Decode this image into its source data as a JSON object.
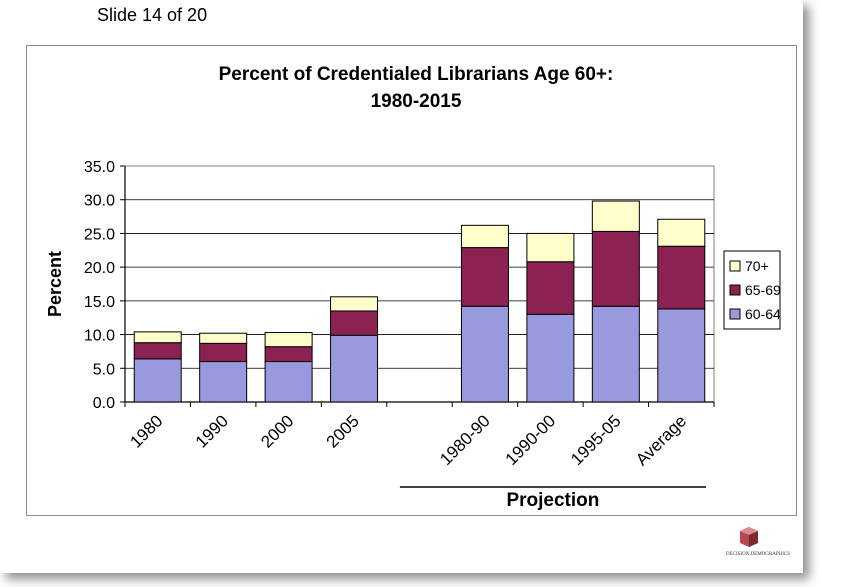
{
  "slide": {
    "label": "Slide 14 of 20"
  },
  "logo": {
    "text": "DECISION DEMOGRAPHICS"
  },
  "chart_data": {
    "type": "bar",
    "stacked": true,
    "title": "Percent of Credentialed Librarians Age 60+:",
    "subtitle": "1980-2015",
    "ylabel": "Percent",
    "xlabel": "",
    "ylim": [
      0,
      35
    ],
    "yticks": [
      "0.0",
      "5.0",
      "10.0",
      "15.0",
      "20.0",
      "25.0",
      "30.0",
      "35.0"
    ],
    "categories": [
      "1980",
      "1990",
      "2000",
      "2005",
      "1980-90",
      "1990-00",
      "1995-05",
      "Average"
    ],
    "group_label": "Projection",
    "series": [
      {
        "name": "60-64",
        "color": "#9999dd",
        "values": [
          6.4,
          6.0,
          6.0,
          9.9,
          14.2,
          13.0,
          14.2,
          13.8
        ]
      },
      {
        "name": "65-69",
        "color": "#8b2252",
        "values": [
          2.4,
          2.7,
          2.2,
          3.6,
          8.7,
          7.8,
          11.1,
          9.3
        ]
      },
      {
        "name": "70+",
        "color": "#ffffcc",
        "values": [
          1.6,
          1.5,
          2.1,
          2.1,
          3.3,
          4.2,
          4.5,
          4.0
        ]
      }
    ],
    "legend_position": "right",
    "grid": true
  }
}
